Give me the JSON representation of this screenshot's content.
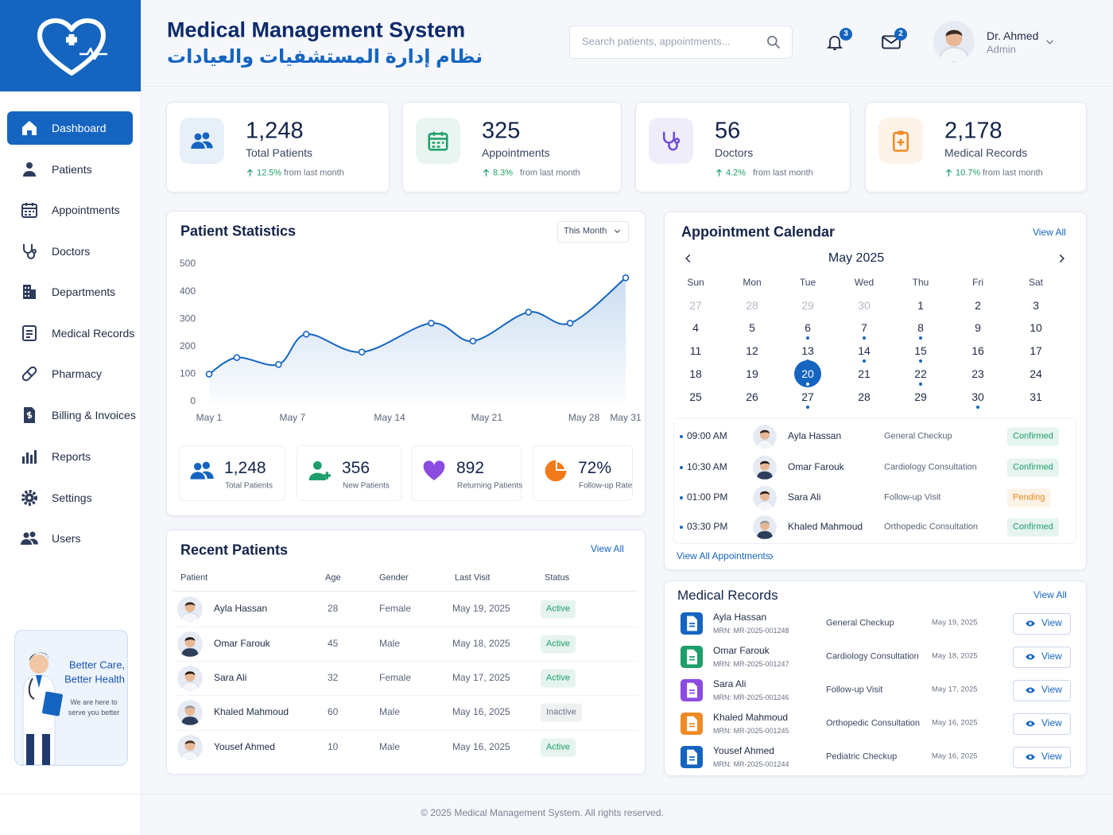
{
  "header": {
    "title": "Medical Management System",
    "subtitle": "نظام إدارة المستشفيات والعيادات",
    "search_placeholder": "Search patients, appointments...",
    "notification_count": "3",
    "message_count": "2",
    "user_name": "Dr. Ahmed",
    "user_role": "Admin"
  },
  "sidebar": {
    "items": [
      "Dashboard",
      "Patients",
      "Appointments",
      "Doctors",
      "Departments",
      "Medical Records",
      "Pharmacy",
      "Billing & Invoices",
      "Reports",
      "Settings",
      "Users"
    ],
    "active": 0
  },
  "promo": {
    "lines": [
      "Better Care,",
      "Better Health"
    ],
    "text": [
      "We are here to",
      "serve you better"
    ]
  },
  "stats": [
    {
      "value": "1,248",
      "label": "Total Patients",
      "change": "12.5%",
      "note": "from last month",
      "color": "#1565c0"
    },
    {
      "value": "325",
      "label": "Appointments",
      "change": "8.3%",
      "note": "from last month",
      "color": "#1e9e6a"
    },
    {
      "value": "56",
      "label": "Doctors",
      "change": "4.2%",
      "note": "from last month",
      "color": "#6d4bd8"
    },
    {
      "value": "2,178",
      "label": "Medical Records",
      "change": "10.7%",
      "note": "from last month",
      "color": "#f08a24"
    }
  ],
  "chart_data": {
    "type": "line",
    "title": "Patient Statistics",
    "period": "This Month",
    "x": [
      1,
      3,
      6,
      8,
      12,
      17,
      20,
      24,
      27,
      31
    ],
    "xlim": [
      1,
      31
    ],
    "xticks": [
      {
        "value": 1,
        "label": "May 1"
      },
      {
        "value": 7,
        "label": "May 7"
      },
      {
        "value": 14,
        "label": "May 14"
      },
      {
        "value": 21,
        "label": "May 21"
      },
      {
        "value": 28,
        "label": "May 28"
      },
      {
        "value": 31,
        "label": "May 31"
      }
    ],
    "ylim": [
      0,
      500
    ],
    "yticks": [
      0,
      100,
      200,
      300,
      400,
      500
    ],
    "series": [
      {
        "color": "#1565c0",
        "values": [
          100,
          160,
          135,
          245,
          180,
          285,
          220,
          325,
          285,
          450
        ]
      }
    ]
  },
  "patient_summary": [
    {
      "value": "1,248",
      "label": "Total Patients",
      "color": "#1565c0"
    },
    {
      "value": "356",
      "label": "New Patients",
      "color": "#1e9e6a"
    },
    {
      "value": "892",
      "label": "Returning Patients",
      "color": "#8b4be0"
    },
    {
      "value": "72%",
      "label": "Follow-up Rate",
      "color": "#f07a1a"
    }
  ],
  "recent_patients": {
    "title": "Recent Patients",
    "view_all": "View All",
    "columns": [
      "Patient",
      "Age",
      "Gender",
      "Last Visit",
      "Status"
    ],
    "rows": [
      {
        "name": "Ayla Hassan",
        "age": "28",
        "gender": "Female",
        "last_visit": "May 19, 2025",
        "status": "Active",
        "status_color": "#1e9e6a"
      },
      {
        "name": "Omar Farouk",
        "age": "45",
        "gender": "Male",
        "last_visit": "May 18, 2025",
        "status": "Active",
        "status_color": "#1e9e6a"
      },
      {
        "name": "Sara Ali",
        "age": "32",
        "gender": "Female",
        "last_visit": "May 17, 2025",
        "status": "Active",
        "status_color": "#1e9e6a"
      },
      {
        "name": "Khaled Mahmoud",
        "age": "60",
        "gender": "Male",
        "last_visit": "May 16, 2025",
        "status": "Inactive",
        "status_color": "#6b7385"
      },
      {
        "name": "Yousef Ahmed",
        "age": "10",
        "gender": "Male",
        "last_visit": "May 16, 2025",
        "status": "Active",
        "status_color": "#1e9e6a"
      }
    ]
  },
  "calendar": {
    "title": "Appointment Calendar",
    "view_all": "View All",
    "month": "May 2025",
    "weekdays": [
      "Sun",
      "Mon",
      "Tue",
      "Wed",
      "Thu",
      "Fri",
      "Sat"
    ],
    "weeks": [
      [
        27,
        28,
        29,
        30,
        1,
        2,
        3
      ],
      [
        4,
        5,
        6,
        7,
        8,
        9,
        10
      ],
      [
        11,
        12,
        13,
        14,
        15,
        16,
        17
      ],
      [
        18,
        19,
        20,
        21,
        22,
        23,
        24
      ],
      [
        25,
        26,
        27,
        28,
        29,
        30,
        31
      ]
    ],
    "leading_muted": 4,
    "selected_day": 20,
    "event_days": [
      6,
      7,
      8,
      13,
      14,
      15,
      20,
      22,
      27,
      30
    ]
  },
  "appointments": {
    "view_all": "View All Appointments",
    "rows": [
      {
        "time": "09:00 AM",
        "name": "Ayla Hassan",
        "type": "General Checkup",
        "status": "Confirmed",
        "status_color": "#1e9e6a"
      },
      {
        "time": "10:30 AM",
        "name": "Omar Farouk",
        "type": "Cardiology Consultation",
        "status": "Confirmed",
        "status_color": "#1e9e6a"
      },
      {
        "time": "01:00 PM",
        "name": "Sara Ali",
        "type": "Follow-up Visit",
        "status": "Pending",
        "status_color": "#e8891c"
      },
      {
        "time": "03:30 PM",
        "name": "Khaled Mahmoud",
        "type": "Orthopedic Consultation",
        "status": "Confirmed",
        "status_color": "#1e9e6a"
      }
    ]
  },
  "medical_records": {
    "title": "Medical Records",
    "view_all": "View All",
    "action": "View",
    "rows": [
      {
        "name": "Ayla Hassan",
        "mrn": "MRN: MR-2025-001248",
        "type": "General Checkup",
        "date": "May 19, 2025",
        "color": "#1565c0"
      },
      {
        "name": "Omar Farouk",
        "mrn": "MRN: MR-2025-001247",
        "type": "Cardiology Consultation",
        "date": "May 18, 2025",
        "color": "#1e9e6a"
      },
      {
        "name": "Sara Ali",
        "mrn": "MRN: MR-2025-001246",
        "type": "Follow-up Visit",
        "date": "May 17, 2025",
        "color": "#8b4be0"
      },
      {
        "name": "Khaled Mahmoud",
        "mrn": "MRN: MR-2025-001245",
        "type": "Orthopedic Consultation",
        "date": "May 16, 2025",
        "color": "#f08a24"
      },
      {
        "name": "Yousef Ahmed",
        "mrn": "MRN: MR-2025-001244",
        "type": "Pediatric Checkup",
        "date": "May 16, 2025",
        "color": "#1565c0"
      }
    ]
  },
  "footer": "© 2025 Medical Management System. All rights reserved."
}
